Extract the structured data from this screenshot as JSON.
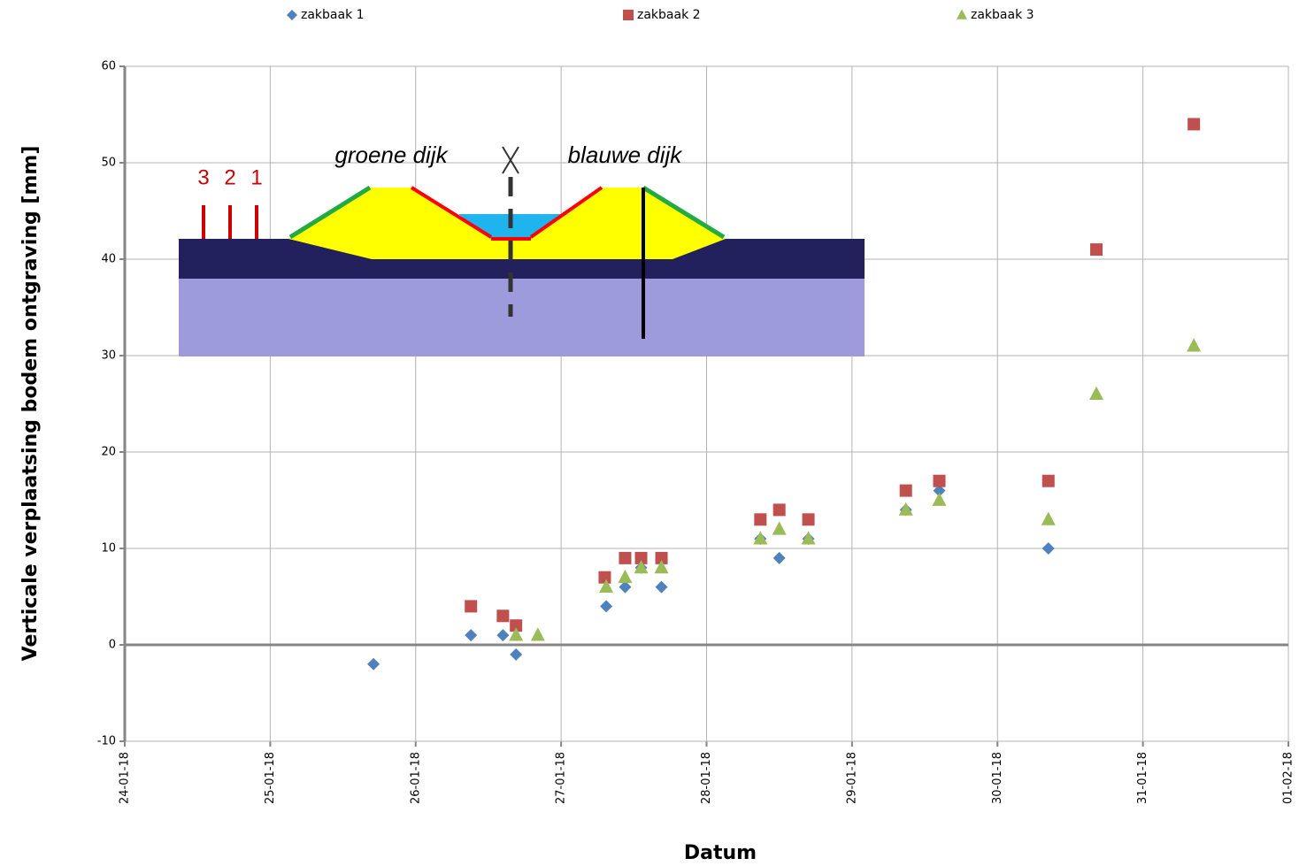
{
  "chart_data": {
    "type": "scatter",
    "x_label": "Datum",
    "y_label": "Verticale verplaatsing bodem ontgraving [mm]",
    "xlim": [
      43124,
      43132
    ],
    "ylim": [
      -10,
      60
    ],
    "xticks": [
      {
        "value": 43124,
        "label": "24-01-18"
      },
      {
        "value": 43125,
        "label": "25-01-18"
      },
      {
        "value": 43126,
        "label": "26-01-18"
      },
      {
        "value": 43127,
        "label": "27-01-18"
      },
      {
        "value": 43128,
        "label": "28-01-18"
      },
      {
        "value": 43129,
        "label": "29-01-18"
      },
      {
        "value": 43130,
        "label": "30-01-18"
      },
      {
        "value": 43131,
        "label": "31-01-18"
      },
      {
        "value": 43132,
        "label": "01-02-18"
      }
    ],
    "yticks": [
      -10,
      0,
      10,
      20,
      30,
      40,
      50,
      60
    ],
    "grid": true,
    "legend": "top",
    "series": [
      {
        "name": "zakbaak 1",
        "color": "#4f81bd",
        "marker": "diamond",
        "x": [
          43125.71,
          43126.38,
          43126.6,
          43126.69,
          43127.31,
          43127.44,
          43127.55,
          43127.69,
          43128.37,
          43128.5,
          43128.7,
          43129.37,
          43129.6,
          43130.35
        ],
        "values": [
          -2,
          1,
          1,
          -1,
          4,
          6,
          8,
          6,
          11,
          9,
          11,
          14,
          16,
          10
        ]
      },
      {
        "name": "zakbaak 2",
        "color": "#c0504d",
        "marker": "square",
        "x": [
          43126.38,
          43126.6,
          43126.69,
          43127.3,
          43127.44,
          43127.55,
          43127.69,
          43128.37,
          43128.5,
          43128.7,
          43129.37,
          43129.6,
          43130.35,
          43130.68,
          43131.35
        ],
        "values": [
          4,
          3,
          2,
          7,
          9,
          9,
          9,
          13,
          14,
          13,
          16,
          17,
          17,
          41,
          54
        ]
      },
      {
        "name": "zakbaak 3",
        "color": "#9bbb59",
        "marker": "triangle",
        "x": [
          43126.69,
          43126.84,
          43127.31,
          43127.44,
          43127.55,
          43127.69,
          43128.37,
          43128.5,
          43128.7,
          43129.37,
          43129.6,
          43130.35,
          43130.68,
          43131.35
        ],
        "values": [
          1,
          1,
          6,
          7,
          8,
          8,
          11,
          12,
          11,
          14,
          15,
          13,
          26,
          31
        ]
      }
    ]
  },
  "diagram": {
    "left_dike": "groene dijk",
    "right_dike": "blauwe dijk",
    "posts": [
      "3",
      "2",
      "1"
    ]
  }
}
